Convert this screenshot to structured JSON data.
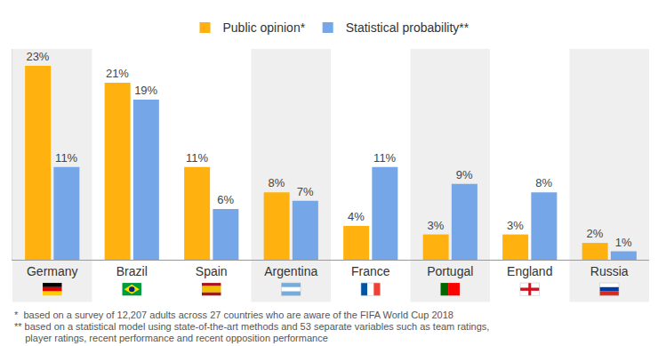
{
  "chart_data": {
    "type": "bar",
    "categories": [
      "Germany",
      "Brazil",
      "Spain",
      "Argentina",
      "France",
      "Portugal",
      "England",
      "Russia"
    ],
    "series": [
      {
        "name": "Public opinion*",
        "color": "#FFB20F",
        "values": [
          23,
          21,
          11,
          8,
          4,
          3,
          3,
          2
        ],
        "value_labels": [
          "23%",
          "21%",
          "11%",
          "8%",
          "4%",
          "3%",
          "3%",
          "2%"
        ]
      },
      {
        "name": "Statistical probability**",
        "color": "#74A6E8",
        "values": [
          11,
          19,
          6,
          7,
          11,
          9,
          8,
          1
        ],
        "value_labels": [
          "11%",
          "19%",
          "6%",
          "7%",
          "11%",
          "9%",
          "8%",
          "1%"
        ]
      }
    ],
    "ylim": [
      0,
      25
    ],
    "yticks": [],
    "grid": false,
    "legend": "top",
    "data_labels": true,
    "tick_labels": "x",
    "annotations": [
      "*  based on a survey of 12,207 adults across 27 countries who are aware of the FIFA World Cup 2018",
      "** based on a statistical model using state-of-the-art methods and 53 separate variables such as team ratings,",
      "    player ratings, recent performance and recent opposition performance"
    ]
  }
}
